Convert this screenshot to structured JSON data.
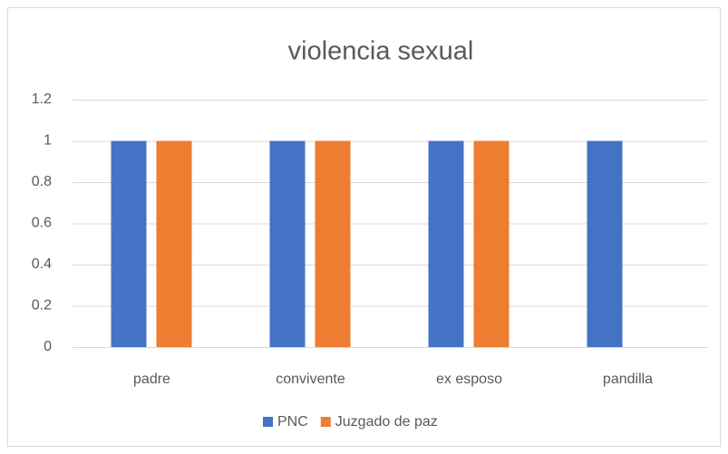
{
  "chart_data": {
    "type": "bar",
    "title": "violencia sexual",
    "categories": [
      "padre",
      "convivente",
      "ex esposo",
      "pandilla"
    ],
    "series": [
      {
        "name": "PNC",
        "color": "#4472c4",
        "values": [
          1,
          1,
          1,
          1
        ]
      },
      {
        "name": "Juzgado de paz",
        "color": "#ed7d31",
        "values": [
          1,
          1,
          1,
          0
        ]
      }
    ],
    "ylim": [
      0,
      1.2
    ],
    "yticks": [
      0,
      0.2,
      0.4,
      0.6,
      0.8,
      1,
      1.2
    ],
    "grid": true,
    "legend": "bottom"
  }
}
